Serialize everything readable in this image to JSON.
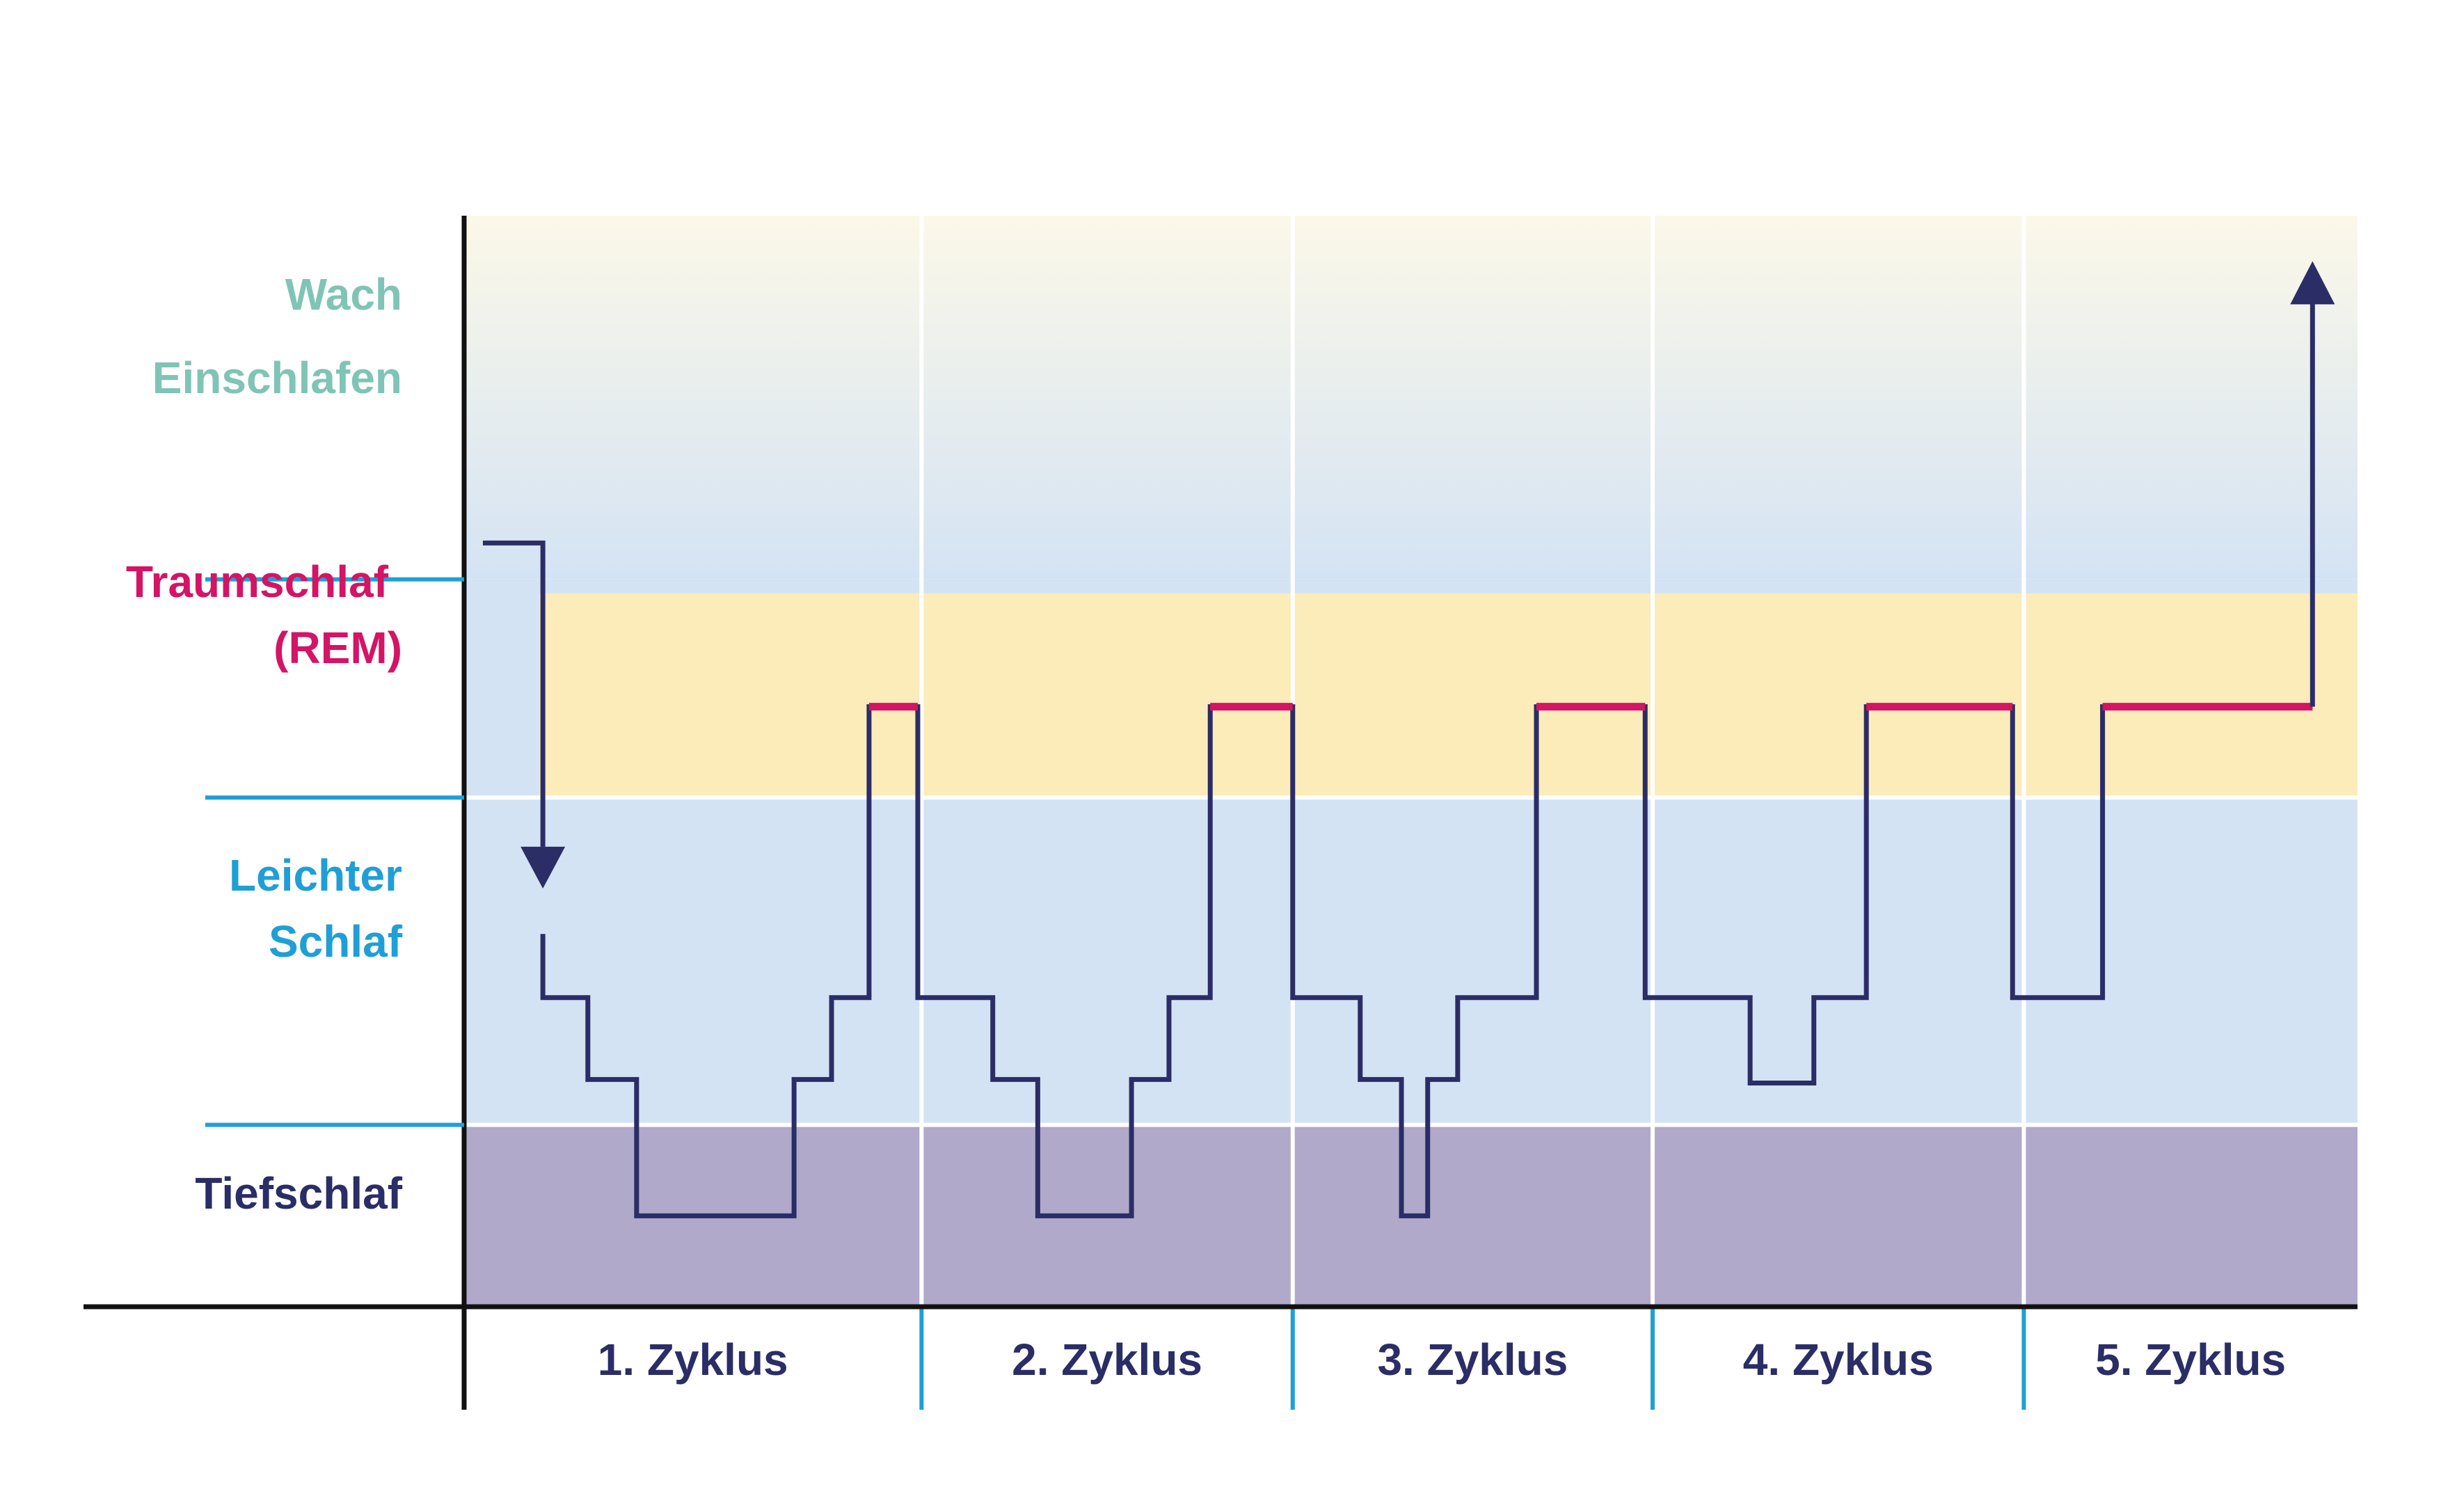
{
  "chart_data": {
    "type": "line",
    "title": "",
    "xlabel": "",
    "ylabel": "",
    "y_labels": [
      {
        "text": "Wach",
        "color": "#7fc4b5"
      },
      {
        "text": "Einschlafen",
        "color": "#7fc4b5"
      },
      {
        "text": "Traumschlaf",
        "color": "#d41465"
      },
      {
        "text": "(REM)",
        "color": "#d41465"
      },
      {
        "text": "Leichter",
        "color": "#1f9fd6"
      },
      {
        "text": "Schlaf",
        "color": "#1f9fd6"
      },
      {
        "text": "Tiefschlaf",
        "color": "#2a2d66"
      }
    ],
    "categories": [
      "1. Zyklus",
      "2. Zyklus",
      "3. Zyklus",
      "4. Zyklus",
      "5. Zyklus"
    ],
    "cycle_bounds": [
      0,
      1.22,
      2.21,
      3.17,
      4.16,
      5.05
    ],
    "stage_bands": {
      "wake": [
        4,
        6
      ],
      "rem": [
        2.8,
        4
      ],
      "light": [
        1,
        2.8
      ],
      "deep": [
        0,
        1
      ]
    },
    "rem_level": 3.3,
    "sleep_onset_arrow": {
      "x_start": 0.05,
      "x_drop": 0.21,
      "from": 4.2,
      "to": 2.3
    },
    "wake_arrow": {
      "x": 4.93,
      "from": 3.3,
      "to": 5.75
    },
    "series": [
      {
        "points": [
          [
            0.21,
            2.05
          ],
          [
            0.21,
            1.7
          ],
          [
            0.33,
            1.7
          ],
          [
            0.33,
            1.25
          ],
          [
            0.46,
            1.25
          ],
          [
            0.46,
            0.5
          ],
          [
            0.88,
            0.5
          ],
          [
            0.88,
            1.25
          ],
          [
            0.98,
            1.25
          ],
          [
            0.98,
            1.7
          ],
          [
            1.08,
            1.7
          ],
          [
            1.08,
            3.3
          ],
          [
            1.21,
            3.3
          ],
          [
            1.21,
            1.7
          ],
          [
            1.41,
            1.7
          ],
          [
            1.41,
            1.25
          ],
          [
            1.53,
            1.25
          ],
          [
            1.53,
            0.5
          ],
          [
            1.78,
            0.5
          ],
          [
            1.78,
            1.25
          ],
          [
            1.88,
            1.25
          ],
          [
            1.88,
            1.7
          ],
          [
            1.99,
            1.7
          ],
          [
            1.99,
            3.3
          ],
          [
            2.21,
            3.3
          ],
          [
            2.21,
            1.7
          ],
          [
            2.39,
            1.7
          ],
          [
            2.39,
            1.25
          ],
          [
            2.5,
            1.25
          ],
          [
            2.5,
            0.5
          ],
          [
            2.57,
            0.5
          ],
          [
            2.57,
            1.25
          ],
          [
            2.65,
            1.25
          ],
          [
            2.65,
            1.7
          ],
          [
            2.86,
            1.7
          ],
          [
            2.86,
            3.3
          ],
          [
            3.15,
            3.3
          ],
          [
            3.15,
            1.7
          ],
          [
            3.43,
            1.7
          ],
          [
            3.43,
            1.23
          ],
          [
            3.6,
            1.23
          ],
          [
            3.6,
            1.7
          ],
          [
            3.74,
            1.7
          ],
          [
            3.74,
            3.3
          ],
          [
            4.13,
            3.3
          ],
          [
            4.13,
            1.7
          ],
          [
            4.37,
            1.7
          ],
          [
            4.37,
            3.3
          ],
          [
            4.93,
            3.3
          ]
        ]
      }
    ],
    "rem_segments": [
      [
        1.08,
        1.21
      ],
      [
        1.99,
        2.21
      ],
      [
        2.86,
        3.15
      ],
      [
        3.74,
        4.13
      ],
      [
        4.37,
        4.93
      ]
    ],
    "colors": {
      "wake_top": "#fbf8e8",
      "wake_bottom": "#d4e3f4",
      "rem_band": "#fbecb9",
      "light_band": "#d4e3f4",
      "deep_band": "#b0a9c9",
      "hypnogram": "#2a2d66",
      "rem_line": "#d41465",
      "divider": "#ffffff",
      "tick": "#1f9fd6",
      "axis": "#111111",
      "category_text": "#2a2d66"
    }
  }
}
